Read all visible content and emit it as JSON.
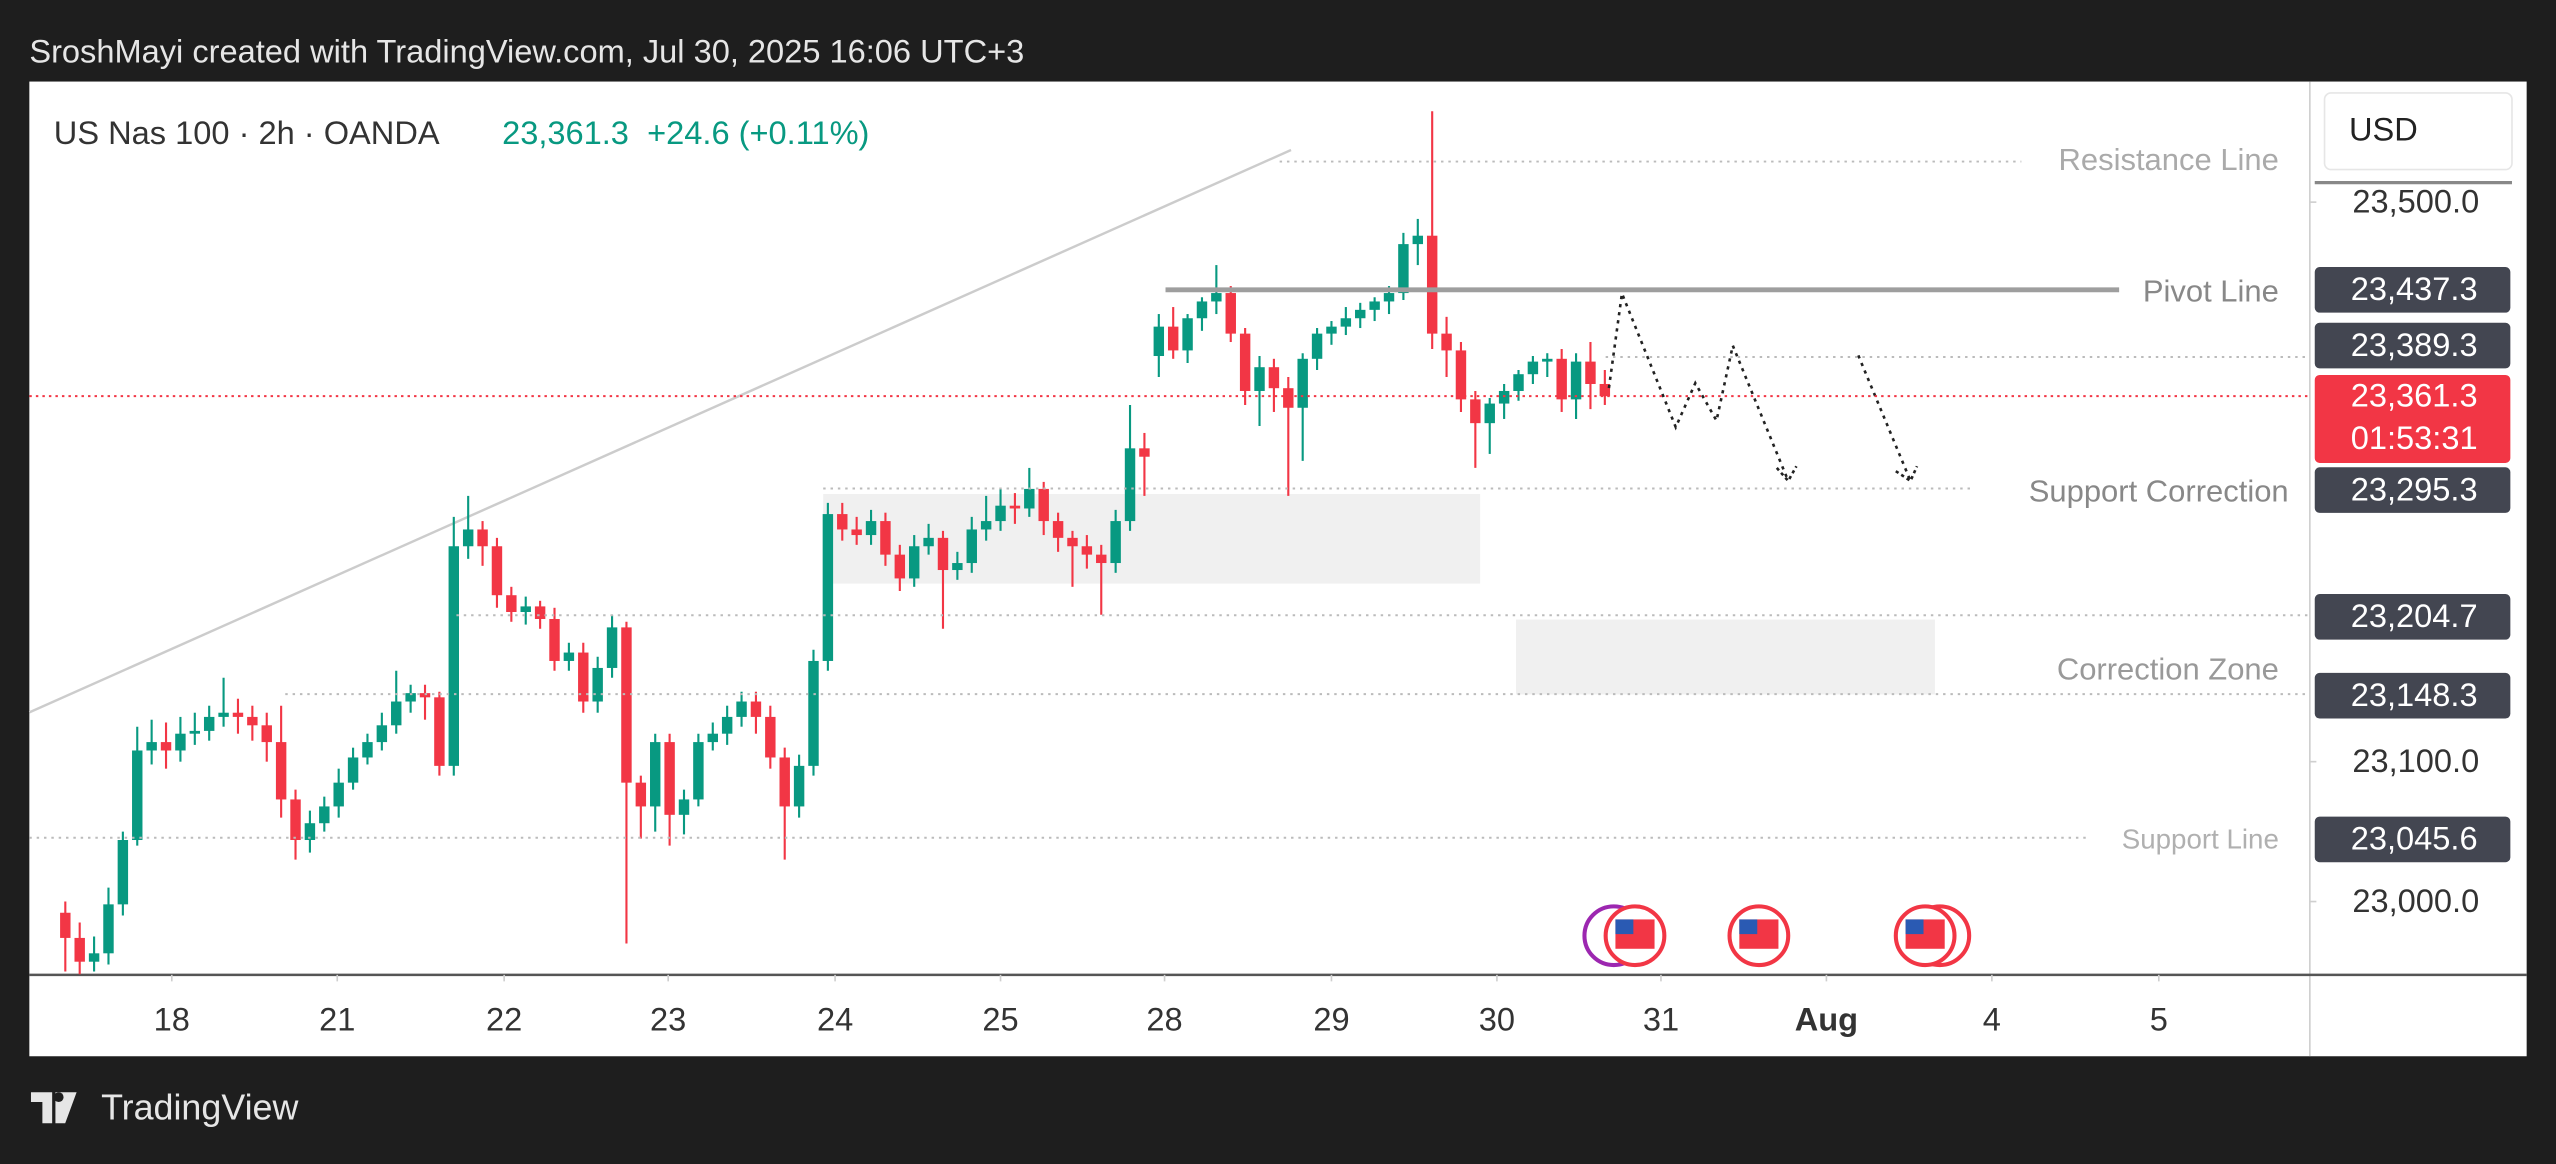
{
  "header": "SroshMayi created with TradingView.com, Jul 30, 2025 16:06 UTC+3",
  "footer": "TradingView",
  "chart_data": {
    "type": "candlestick",
    "symbol": "US Nas 100 · 2h · OANDA",
    "price": "23,361.3",
    "change": "+24.6 (+0.11%)",
    "currency": "USD",
    "up_color": "#089981",
    "down_color": "#f23645",
    "xlim": [
      -2.5,
      156
    ],
    "ylim": [
      22947.6,
      23586.2
    ],
    "yticks": [
      {
        "value": 23500,
        "label": "23,500.0"
      },
      {
        "value": 23100,
        "label": "23,100.0"
      },
      {
        "value": 23000,
        "label": "23,000.0"
      }
    ],
    "xticks": [
      {
        "value": 7.4,
        "label": "18"
      },
      {
        "value": 18.9,
        "label": "21"
      },
      {
        "value": 30.5,
        "label": "22"
      },
      {
        "value": 41.9,
        "label": "23"
      },
      {
        "value": 53.5,
        "label": "24"
      },
      {
        "value": 65.0,
        "label": "25"
      },
      {
        "value": 76.4,
        "label": "28"
      },
      {
        "value": 88.0,
        "label": "29"
      },
      {
        "value": 99.5,
        "label": "30"
      },
      {
        "value": 110.9,
        "label": "31"
      },
      {
        "value": 122.4,
        "label": "Aug"
      },
      {
        "value": 133.9,
        "label": "4"
      },
      {
        "value": 145.5,
        "label": "5"
      }
    ],
    "current": {
      "value": 23361.3,
      "value_label": "23,361.3",
      "countdown": "01:53:31"
    },
    "levels": [
      {
        "name": "Resistance Line",
        "value": 23529
      },
      {
        "name": "Pivot Line",
        "value": 23437.3,
        "value_label": "23,437.3"
      },
      {
        "value": 23389.3,
        "value_label": "23,389.3"
      },
      {
        "name": "Support Correction",
        "value": 23295.3,
        "value_label": "23,295.3"
      },
      {
        "value": 23204.7,
        "value_label": "23,204.7"
      },
      {
        "name": "Correction Zone",
        "value": 23148.3,
        "value_label": "23,148.3"
      },
      {
        "name": "Support Line",
        "value": 23045.6,
        "value_label": "23,045.6"
      }
    ],
    "ohlc": [
      [
        22992,
        23000,
        22950,
        22974
      ],
      [
        22974,
        22985,
        22948,
        22957
      ],
      [
        22957,
        22975,
        22950,
        22963
      ],
      [
        22963,
        23010,
        22955,
        22998
      ],
      [
        22998,
        23050,
        22990,
        23044
      ],
      [
        23044,
        23125,
        23040,
        23108
      ],
      [
        23108,
        23130,
        23098,
        23114
      ],
      [
        23114,
        23128,
        23095,
        23108
      ],
      [
        23108,
        23132,
        23100,
        23120
      ],
      [
        23120,
        23135,
        23112,
        23122
      ],
      [
        23122,
        23140,
        23115,
        23132
      ],
      [
        23132,
        23160,
        23125,
        23135
      ],
      [
        23135,
        23145,
        23120,
        23132
      ],
      [
        23132,
        23140,
        23115,
        23126
      ],
      [
        23126,
        23135,
        23100,
        23114
      ],
      [
        23114,
        23140,
        23060,
        23073
      ],
      [
        23073,
        23080,
        23030,
        23044
      ],
      [
        23044,
        23065,
        23035,
        23056
      ],
      [
        23056,
        23075,
        23050,
        23068
      ],
      [
        23068,
        23095,
        23060,
        23085
      ],
      [
        23085,
        23110,
        23080,
        23103
      ],
      [
        23103,
        23120,
        23098,
        23114
      ],
      [
        23114,
        23135,
        23108,
        23126
      ],
      [
        23126,
        23165,
        23120,
        23143
      ],
      [
        23143,
        23155,
        23135,
        23149
      ],
      [
        23149,
        23155,
        23130,
        23146
      ],
      [
        23146,
        23150,
        23090,
        23097
      ],
      [
        23097,
        23275,
        23090,
        23254
      ],
      [
        23254,
        23290,
        23245,
        23266
      ],
      [
        23266,
        23272,
        23240,
        23254
      ],
      [
        23254,
        23260,
        23210,
        23219
      ],
      [
        23219,
        23225,
        23200,
        23207
      ],
      [
        23207,
        23218,
        23198,
        23211
      ],
      [
        23211,
        23215,
        23195,
        23202
      ],
      [
        23202,
        23210,
        23165,
        23172
      ],
      [
        23172,
        23185,
        23165,
        23178
      ],
      [
        23178,
        23185,
        23135,
        23143
      ],
      [
        23143,
        23175,
        23135,
        23167
      ],
      [
        23167,
        23205,
        23160,
        23196
      ],
      [
        23196,
        23200,
        22970,
        23085
      ],
      [
        23085,
        23090,
        23045,
        23068
      ],
      [
        23068,
        23120,
        23050,
        23114
      ],
      [
        23114,
        23120,
        23040,
        23062
      ],
      [
        23062,
        23080,
        23048,
        23073
      ],
      [
        23073,
        23120,
        23068,
        23114
      ],
      [
        23114,
        23128,
        23108,
        23120
      ],
      [
        23120,
        23140,
        23112,
        23132
      ],
      [
        23132,
        23150,
        23125,
        23143
      ],
      [
        23143,
        23150,
        23120,
        23132
      ],
      [
        23132,
        23140,
        23095,
        23103
      ],
      [
        23103,
        23110,
        23030,
        23068
      ],
      [
        23068,
        23105,
        23060,
        23097
      ],
      [
        23097,
        23180,
        23090,
        23172
      ],
      [
        23172,
        23285,
        23165,
        23277
      ],
      [
        23277,
        23285,
        23258,
        23266
      ],
      [
        23266,
        23275,
        23255,
        23262
      ],
      [
        23262,
        23280,
        23255,
        23272
      ],
      [
        23272,
        23278,
        23240,
        23248
      ],
      [
        23248,
        23255,
        23222,
        23231
      ],
      [
        23231,
        23262,
        23225,
        23254
      ],
      [
        23254,
        23270,
        23248,
        23260
      ],
      [
        23260,
        23265,
        23195,
        23237
      ],
      [
        23237,
        23250,
        23230,
        23242
      ],
      [
        23242,
        23275,
        23235,
        23266
      ],
      [
        23266,
        23290,
        23258,
        23272
      ],
      [
        23272,
        23295,
        23265,
        23283
      ],
      [
        23283,
        23292,
        23270,
        23281
      ],
      [
        23281,
        23310,
        23275,
        23295
      ],
      [
        23295,
        23300,
        23262,
        23272
      ],
      [
        23272,
        23278,
        23250,
        23260
      ],
      [
        23260,
        23265,
        23225,
        23254
      ],
      [
        23254,
        23262,
        23238,
        23248
      ],
      [
        23248,
        23255,
        23205,
        23242
      ],
      [
        23242,
        23280,
        23235,
        23272
      ],
      [
        23272,
        23355,
        23265,
        23324
      ],
      [
        23324,
        23335,
        23290,
        23318
      ],
      [
        23390,
        23420,
        23375,
        23411
      ],
      [
        23411,
        23425,
        23388,
        23394
      ],
      [
        23394,
        23420,
        23385,
        23417
      ],
      [
        23417,
        23432,
        23408,
        23429
      ],
      [
        23429,
        23455,
        23420,
        23435
      ],
      [
        23435,
        23440,
        23400,
        23406
      ],
      [
        23406,
        23410,
        23355,
        23365
      ],
      [
        23365,
        23390,
        23340,
        23382
      ],
      [
        23382,
        23388,
        23350,
        23367
      ],
      [
        23367,
        23375,
        23290,
        23353
      ],
      [
        23353,
        23392,
        23315,
        23388
      ],
      [
        23388,
        23410,
        23380,
        23406
      ],
      [
        23406,
        23415,
        23398,
        23411
      ],
      [
        23411,
        23425,
        23405,
        23417
      ],
      [
        23417,
        23428,
        23410,
        23423
      ],
      [
        23423,
        23432,
        23415,
        23429
      ],
      [
        23429,
        23440,
        23420,
        23435
      ],
      [
        23435,
        23478,
        23430,
        23470
      ],
      [
        23470,
        23488,
        23455,
        23476
      ],
      [
        23476,
        23565,
        23395,
        23406
      ],
      [
        23406,
        23418,
        23375,
        23394
      ],
      [
        23394,
        23400,
        23350,
        23359
      ],
      [
        23359,
        23365,
        23310,
        23342
      ],
      [
        23342,
        23360,
        23320,
        23356
      ],
      [
        23356,
        23370,
        23345,
        23365
      ],
      [
        23365,
        23380,
        23358,
        23377
      ],
      [
        23377,
        23390,
        23370,
        23386
      ],
      [
        23386,
        23392,
        23375,
        23388
      ],
      [
        23388,
        23395,
        23350,
        23359
      ],
      [
        23359,
        23392,
        23345,
        23386
      ],
      [
        23386,
        23400,
        23352,
        23370
      ],
      [
        23370,
        23380,
        23355,
        23361.3
      ]
    ]
  }
}
